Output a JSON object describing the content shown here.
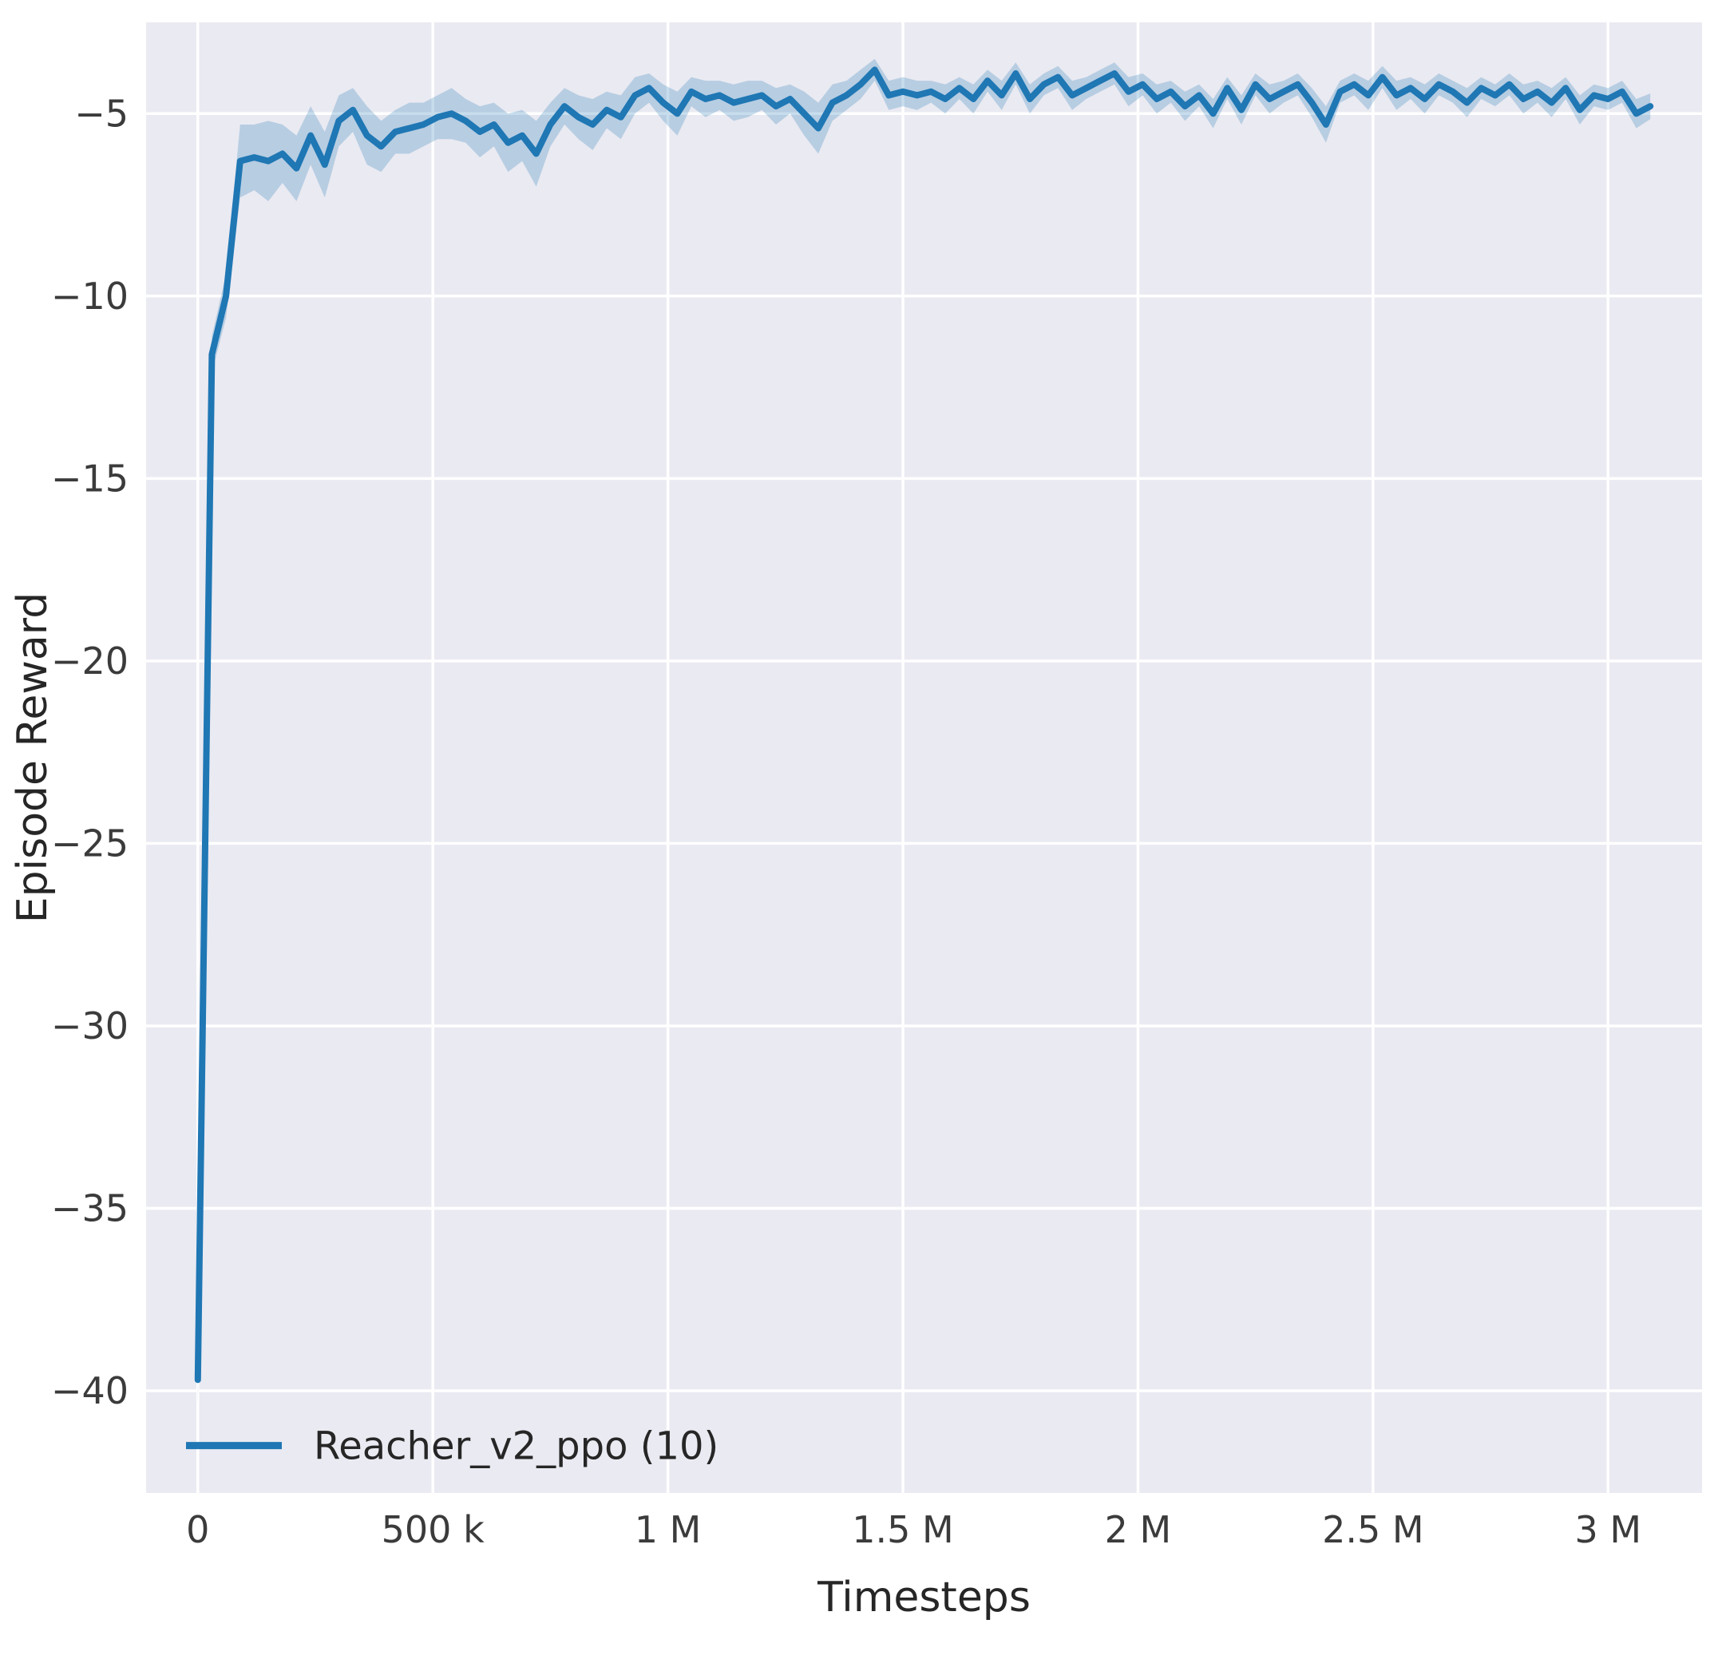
{
  "chart_data": {
    "type": "line",
    "title": "",
    "xlabel": "Timesteps",
    "ylabel": "Episode Reward",
    "xlim": [
      -110000,
      3200000
    ],
    "ylim": [
      -42.8,
      -2.5
    ],
    "grid": true,
    "legend_position": "lower left",
    "x_ticks": {
      "values": [
        0,
        500000,
        1000000,
        1500000,
        2000000,
        2500000,
        3000000
      ],
      "labels": [
        "0",
        "500 k",
        "1 M",
        "1.5 M",
        "2 M",
        "2.5 M",
        "3 M"
      ]
    },
    "y_ticks": {
      "values": [
        -5,
        -10,
        -15,
        -20,
        -25,
        -30,
        -35,
        -40
      ],
      "labels": [
        "−5",
        "−10",
        "−15",
        "−20",
        "−25",
        "−30",
        "−35",
        "−40"
      ]
    },
    "colors": {
      "line": "#1f77b4",
      "band": "#1f77b4",
      "band_opacity": 0.25,
      "plot_background": "#eaeaf2",
      "grid": "#ffffff",
      "tick_text": "#3b3b3b",
      "label_text": "#262626"
    },
    "series": [
      {
        "name": "Reacher_v2_ppo (10)",
        "x": [
          0,
          30000,
          60000,
          90000,
          120000,
          150000,
          180000,
          210000,
          240000,
          270000,
          300000,
          330000,
          360000,
          390000,
          420000,
          450000,
          480000,
          510000,
          540000,
          570000,
          600000,
          630000,
          660000,
          690000,
          720000,
          750000,
          780000,
          810000,
          840000,
          870000,
          900000,
          930000,
          960000,
          990000,
          1020000,
          1050000,
          1080000,
          1110000,
          1140000,
          1170000,
          1200000,
          1230000,
          1260000,
          1290000,
          1320000,
          1350000,
          1380000,
          1410000,
          1440000,
          1470000,
          1500000,
          1530000,
          1560000,
          1590000,
          1620000,
          1650000,
          1680000,
          1710000,
          1740000,
          1770000,
          1800000,
          1830000,
          1860000,
          1890000,
          1920000,
          1950000,
          1980000,
          2010000,
          2040000,
          2070000,
          2100000,
          2130000,
          2160000,
          2190000,
          2220000,
          2250000,
          2280000,
          2310000,
          2340000,
          2370000,
          2400000,
          2430000,
          2460000,
          2490000,
          2520000,
          2550000,
          2580000,
          2610000,
          2640000,
          2670000,
          2700000,
          2730000,
          2760000,
          2790000,
          2820000,
          2850000,
          2880000,
          2910000,
          2940000,
          2970000,
          3000000,
          3030000,
          3060000,
          3090000
        ],
        "y": [
          -39.7,
          -11.6,
          -10.0,
          -6.3,
          -6.2,
          -6.3,
          -6.1,
          -6.5,
          -5.6,
          -6.4,
          -5.2,
          -4.9,
          -5.6,
          -5.9,
          -5.5,
          -5.4,
          -5.3,
          -5.1,
          -5.0,
          -5.2,
          -5.5,
          -5.3,
          -5.8,
          -5.6,
          -6.1,
          -5.3,
          -4.8,
          -5.1,
          -5.3,
          -4.9,
          -5.1,
          -4.5,
          -4.3,
          -4.7,
          -5.0,
          -4.4,
          -4.6,
          -4.5,
          -4.7,
          -4.6,
          -4.5,
          -4.8,
          -4.6,
          -5.0,
          -5.4,
          -4.7,
          -4.5,
          -4.2,
          -3.8,
          -4.5,
          -4.4,
          -4.5,
          -4.4,
          -4.6,
          -4.3,
          -4.6,
          -4.1,
          -4.5,
          -3.9,
          -4.6,
          -4.2,
          -4.0,
          -4.5,
          -4.3,
          -4.1,
          -3.9,
          -4.4,
          -4.2,
          -4.6,
          -4.4,
          -4.8,
          -4.5,
          -5.0,
          -4.3,
          -4.9,
          -4.2,
          -4.6,
          -4.4,
          -4.2,
          -4.7,
          -5.3,
          -4.4,
          -4.2,
          -4.5,
          -4.0,
          -4.5,
          -4.3,
          -4.6,
          -4.2,
          -4.4,
          -4.7,
          -4.3,
          -4.5,
          -4.2,
          -4.6,
          -4.4,
          -4.7,
          -4.3,
          -4.9,
          -4.5,
          -4.6,
          -4.4,
          -5.0,
          -4.8
        ],
        "band_halfwidth": [
          0.8,
          0.5,
          0.6,
          1.0,
          0.9,
          1.1,
          0.8,
          0.9,
          0.8,
          0.9,
          0.7,
          0.6,
          0.8,
          0.7,
          0.6,
          0.7,
          0.6,
          0.6,
          0.7,
          0.6,
          0.7,
          0.6,
          0.8,
          0.7,
          0.9,
          0.6,
          0.5,
          0.6,
          0.7,
          0.5,
          0.6,
          0.5,
          0.4,
          0.5,
          0.6,
          0.4,
          0.5,
          0.4,
          0.5,
          0.5,
          0.4,
          0.5,
          0.4,
          0.6,
          0.7,
          0.5,
          0.4,
          0.4,
          0.3,
          0.4,
          0.4,
          0.4,
          0.3,
          0.4,
          0.3,
          0.4,
          0.3,
          0.4,
          0.3,
          0.4,
          0.3,
          0.3,
          0.4,
          0.3,
          0.3,
          0.3,
          0.4,
          0.3,
          0.4,
          0.3,
          0.4,
          0.3,
          0.4,
          0.3,
          0.4,
          0.3,
          0.4,
          0.3,
          0.3,
          0.4,
          0.5,
          0.3,
          0.3,
          0.4,
          0.3,
          0.4,
          0.3,
          0.4,
          0.3,
          0.3,
          0.4,
          0.3,
          0.3,
          0.3,
          0.4,
          0.3,
          0.4,
          0.3,
          0.4,
          0.3,
          0.3,
          0.3,
          0.4,
          0.35
        ]
      }
    ]
  }
}
